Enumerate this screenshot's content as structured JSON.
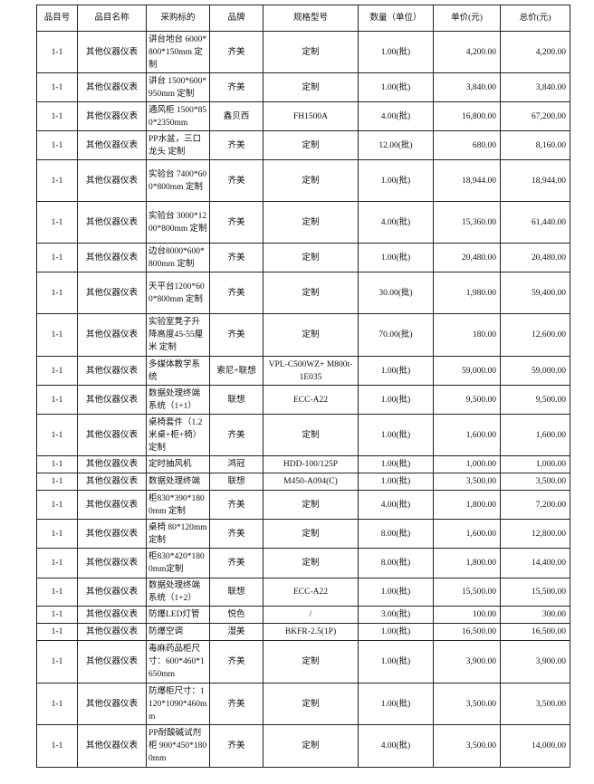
{
  "headers": [
    "品目号",
    "品目名称",
    "采购标的",
    "品牌",
    "规格型号",
    "数量（单位）",
    "单价(元)",
    "总价(元)"
  ],
  "rows": [
    {
      "no": "1-1",
      "name": "其他仪器仪表",
      "item": "讲台地台 6000*800*150mm 定制",
      "brand": "齐美",
      "model": "定制",
      "qty": "1.00(批)",
      "price": "4,200.00",
      "total": "4,200.00"
    },
    {
      "no": "1-1",
      "name": "其他仪器仪表",
      "item": "讲台 1500*600*950mm 定制",
      "brand": "齐美",
      "model": "定制",
      "qty": "1.00(批)",
      "price": "3,840.00",
      "total": "3,840.00"
    },
    {
      "no": "1-1",
      "name": "其他仪器仪表",
      "item": "通风柜 1500*850*2350mm",
      "brand": "鑫贝西",
      "model": "FH1500A",
      "qty": "4.00(批)",
      "price": "16,800.00",
      "total": "67,200.00"
    },
    {
      "no": "1-1",
      "name": "其他仪器仪表",
      "item": "PP水盆，三口龙头 定制",
      "brand": "齐美",
      "model": "定制",
      "qty": "12.00(批)",
      "price": "680.00",
      "total": "8,160.00"
    },
    {
      "no": "1-1",
      "name": "其他仪器仪表",
      "item": "实验台 7400*600*800mm 定制",
      "brand": "齐美",
      "model": "定制",
      "qty": "1.00(批)",
      "price": "18,944.00",
      "total": "18,944.00"
    },
    {
      "no": "1-1",
      "name": "其他仪器仪表",
      "item": "实验台 3000*1200*800mm 定制",
      "brand": "齐美",
      "model": "定制",
      "qty": "4.00(批)",
      "price": "15,360.00",
      "total": "61,440.00"
    },
    {
      "no": "1-1",
      "name": "其他仪器仪表",
      "item": "边台8000*600*800mm 定制",
      "brand": "齐美",
      "model": "定制",
      "qty": "1.00(批)",
      "price": "20,480.00",
      "total": "20,480.00"
    },
    {
      "no": "1-1",
      "name": "其他仪器仪表",
      "item": "天平台1200*600*800mm 定制",
      "brand": "齐美",
      "model": "定制",
      "qty": "30.00(批)",
      "price": "1,980.00",
      "total": "59,400.00"
    },
    {
      "no": "1-1",
      "name": "其他仪器仪表",
      "item": "实验室凳子升降高度45-55厘米 定制",
      "brand": "齐美",
      "model": "定制",
      "qty": "70.00(批)",
      "price": "180.00",
      "total": "12,600.00"
    },
    {
      "no": "1-1",
      "name": "其他仪器仪表",
      "item": "多媒体教学系统",
      "brand": "索尼+联想",
      "model": "VPL-C500WZ+ M800t-1E035",
      "qty": "1.00(批)",
      "price": "59,000.00",
      "total": "59,000.00"
    },
    {
      "no": "1-1",
      "name": "其他仪器仪表",
      "item": "数据处理终端系统（1+1）",
      "brand": "联想",
      "model": "ECC-A22",
      "qty": "1.00(批)",
      "price": "9,500.00",
      "total": "9,500.00"
    },
    {
      "no": "1-1",
      "name": "其他仪器仪表",
      "item": "桌椅套件（1.2米桌+柜+椅）定制",
      "brand": "齐美",
      "model": "定制",
      "qty": "1.00(批)",
      "price": "1,600.00",
      "total": "1,600.00"
    },
    {
      "no": "1-1",
      "name": "其他仪器仪表",
      "item": "定时抽风机",
      "brand": "鸿冠",
      "model": "HDD-100/125P",
      "qty": "1.00(批)",
      "price": "1,000.00",
      "total": "1,000.00"
    },
    {
      "no": "1-1",
      "name": "其他仪器仪表",
      "item": "数据处理终端",
      "brand": "联想",
      "model": "M450-A094(C)",
      "qty": "1.00(批)",
      "price": "3,500.00",
      "total": "3,500.00"
    },
    {
      "no": "1-1",
      "name": "其他仪器仪表",
      "item": "柜830*390*1800mm 定制",
      "brand": "齐美",
      "model": "定制",
      "qty": "4.00(批)",
      "price": "1,800.00",
      "total": "7,200.00"
    },
    {
      "no": "1-1",
      "name": "其他仪器仪表",
      "item": "桌椅 80*120mm 定制",
      "brand": "齐美",
      "model": "定制",
      "qty": "8.00(批)",
      "price": "1,600.00",
      "total": "12,800.00"
    },
    {
      "no": "1-1",
      "name": "其他仪器仪表",
      "item": "柜830*420*1800mm定制",
      "brand": "齐美",
      "model": "定制",
      "qty": "8.00(批)",
      "price": "1,800.00",
      "total": "14,400.00"
    },
    {
      "no": "1-1",
      "name": "其他仪器仪表",
      "item": "数据处理终端系统（1+2）",
      "brand": "联想",
      "model": "ECC-A22",
      "qty": "1.00(批)",
      "price": "15,500.00",
      "total": "15,500.00"
    },
    {
      "no": "1-1",
      "name": "其他仪器仪表",
      "item": "防爆LED灯管",
      "brand": "悦色",
      "model": "/",
      "qty": "3.00(批)",
      "price": "100.00",
      "total": "300.00"
    },
    {
      "no": "1-1",
      "name": "其他仪器仪表",
      "item": "防爆空调",
      "brand": "湿美",
      "model": "BKFR-2.5(1P)",
      "qty": "1.00(批)",
      "price": "16,500.00",
      "total": "16,500.00"
    },
    {
      "no": "1-1",
      "name": "其他仪器仪表",
      "item": "毒麻药品柜尺寸：600*460*1650mm",
      "brand": "齐美",
      "model": "定制",
      "qty": "1.00(批)",
      "price": "3,900.00",
      "total": "3,900.00"
    },
    {
      "no": "1-1",
      "name": "其他仪器仪表",
      "item": "防爆柜尺寸：1120*1090*460mm",
      "brand": "齐美",
      "model": "定制",
      "qty": "1.00(批)",
      "price": "3,500.00",
      "total": "3,500.00"
    },
    {
      "no": "1-1",
      "name": "其他仪器仪表",
      "item": "PP耐酸碱试剂柜 900*450*1800mm",
      "brand": "齐美",
      "model": "定制",
      "qty": "4.00(批)",
      "price": "3,500.00",
      "total": "14,000.00"
    }
  ]
}
